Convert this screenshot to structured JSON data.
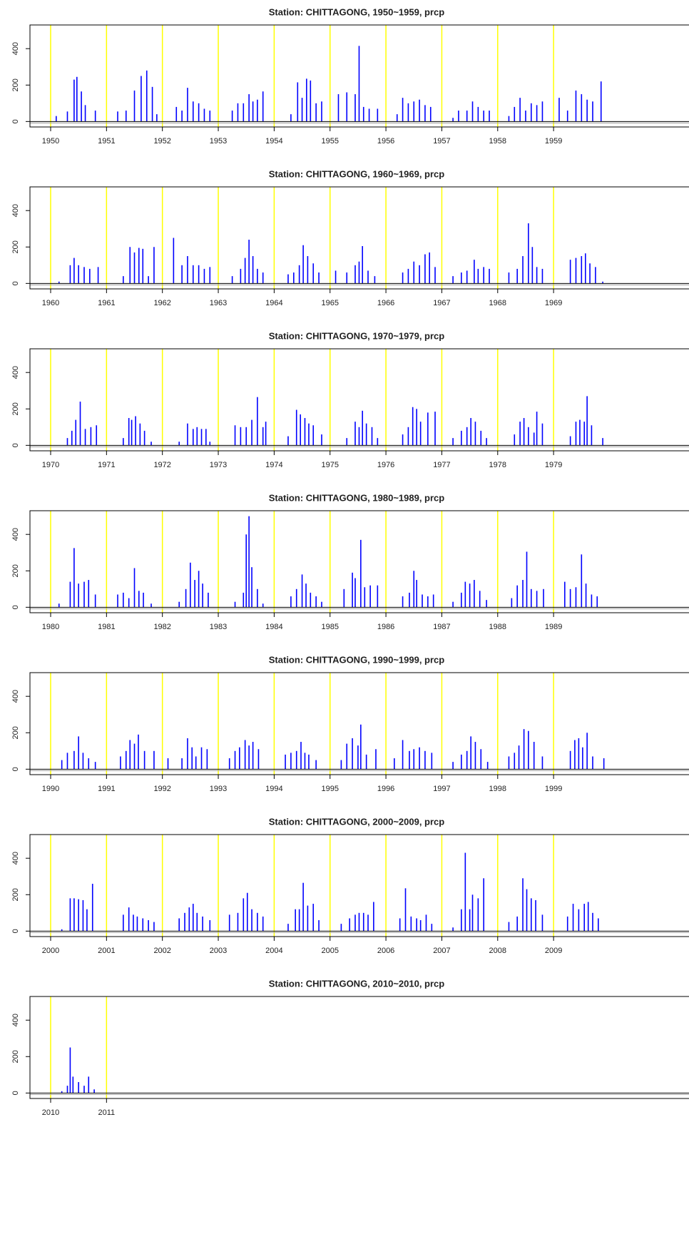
{
  "chart_data": [
    {
      "type": "bar",
      "title": "Station: CHITTAGONG, 1950~1959,  prcp",
      "color": "#0000ff",
      "year_line_color": "#ffff00",
      "xlim": [
        1949.63,
        1961.5
      ],
      "ylim": [
        -30,
        530
      ],
      "yticks": [
        0,
        200,
        400
      ],
      "xticks": [
        1950,
        1951,
        1952,
        1953,
        1954,
        1955,
        1956,
        1957,
        1958,
        1959
      ],
      "x": [
        1950.1,
        1950.3,
        1950.42,
        1950.47,
        1950.55,
        1950.62,
        1950.8,
        1951.2,
        1951.35,
        1951.5,
        1951.62,
        1951.72,
        1951.82,
        1951.9,
        1952.25,
        1952.35,
        1952.45,
        1952.55,
        1952.65,
        1952.75,
        1952.85,
        1953.25,
        1953.35,
        1953.45,
        1953.55,
        1953.62,
        1953.7,
        1953.8,
        1954.3,
        1954.42,
        1954.5,
        1954.58,
        1954.65,
        1954.75,
        1954.85,
        1955.15,
        1955.3,
        1955.45,
        1955.52,
        1955.6,
        1955.7,
        1955.85,
        1956.2,
        1956.3,
        1956.4,
        1956.5,
        1956.6,
        1956.7,
        1956.8,
        1957.2,
        1957.3,
        1957.45,
        1957.55,
        1957.65,
        1957.75,
        1957.85,
        1958.2,
        1958.3,
        1958.4,
        1958.5,
        1958.6,
        1958.7,
        1958.8,
        1959.1,
        1959.25,
        1959.4,
        1959.5,
        1959.6,
        1959.7,
        1959.85
      ],
      "values": [
        30,
        55,
        230,
        245,
        165,
        90,
        60,
        55,
        60,
        170,
        250,
        280,
        190,
        40,
        80,
        60,
        185,
        110,
        100,
        70,
        60,
        60,
        100,
        100,
        150,
        110,
        120,
        165,
        40,
        215,
        130,
        235,
        225,
        100,
        110,
        150,
        160,
        150,
        415,
        80,
        70,
        70,
        40,
        130,
        100,
        110,
        120,
        90,
        80,
        20,
        60,
        60,
        110,
        80,
        60,
        60,
        30,
        80,
        130,
        60,
        100,
        90,
        110,
        130,
        60,
        170,
        150,
        120,
        110,
        220
      ]
    },
    {
      "type": "bar",
      "title": "Station: CHITTAGONG, 1960~1969,  prcp",
      "color": "#0000ff",
      "year_line_color": "#ffff00",
      "xlim": [
        1959.63,
        1971.5
      ],
      "ylim": [
        -30,
        530
      ],
      "yticks": [
        0,
        200,
        400
      ],
      "xticks": [
        1960,
        1961,
        1962,
        1963,
        1964,
        1965,
        1966,
        1967,
        1968,
        1969
      ],
      "x": [
        1960.15,
        1960.35,
        1960.42,
        1960.5,
        1960.6,
        1960.7,
        1960.85,
        1961.3,
        1961.42,
        1961.5,
        1961.58,
        1961.65,
        1961.75,
        1961.85,
        1962.2,
        1962.35,
        1962.45,
        1962.55,
        1962.65,
        1962.75,
        1962.85,
        1963.25,
        1963.4,
        1963.48,
        1963.55,
        1963.62,
        1963.7,
        1963.8,
        1964.25,
        1964.35,
        1964.45,
        1964.52,
        1964.6,
        1964.7,
        1964.8,
        1965.1,
        1965.3,
        1965.45,
        1965.52,
        1965.58,
        1965.68,
        1965.8,
        1966.3,
        1966.4,
        1966.5,
        1966.6,
        1966.7,
        1966.78,
        1966.88,
        1967.2,
        1967.35,
        1967.45,
        1967.58,
        1967.65,
        1967.75,
        1967.85,
        1968.2,
        1968.35,
        1968.45,
        1968.55,
        1968.62,
        1968.7,
        1968.8,
        1969.3,
        1969.4,
        1969.5,
        1969.57,
        1969.65,
        1969.75,
        1969.88
      ],
      "values": [
        10,
        100,
        140,
        100,
        90,
        80,
        90,
        40,
        200,
        170,
        195,
        190,
        40,
        200,
        250,
        100,
        150,
        100,
        100,
        80,
        90,
        40,
        80,
        140,
        240,
        150,
        80,
        60,
        50,
        60,
        100,
        210,
        150,
        110,
        60,
        70,
        60,
        100,
        120,
        205,
        70,
        40,
        60,
        80,
        120,
        100,
        160,
        170,
        90,
        40,
        60,
        70,
        130,
        80,
        90,
        80,
        60,
        80,
        150,
        330,
        200,
        90,
        80,
        130,
        140,
        150,
        165,
        110,
        90,
        10
      ]
    },
    {
      "type": "bar",
      "title": "Station: CHITTAGONG, 1970~1979,  prcp",
      "color": "#0000ff",
      "year_line_color": "#ffff00",
      "xlim": [
        1969.63,
        1981.5
      ],
      "ylim": [
        -30,
        530
      ],
      "yticks": [
        0,
        200,
        400
      ],
      "xticks": [
        1970,
        1971,
        1972,
        1973,
        1974,
        1975,
        1976,
        1977,
        1978,
        1979
      ],
      "x": [
        1970.3,
        1970.38,
        1970.45,
        1970.53,
        1970.62,
        1970.72,
        1970.82,
        1971.3,
        1971.4,
        1971.45,
        1971.52,
        1971.6,
        1971.68,
        1971.8,
        1972.3,
        1972.45,
        1972.55,
        1972.62,
        1972.7,
        1972.78,
        1972.85,
        1973.3,
        1973.4,
        1973.5,
        1973.6,
        1973.7,
        1973.8,
        1973.85,
        1974.25,
        1974.4,
        1974.47,
        1974.55,
        1974.62,
        1974.7,
        1974.85,
        1975.3,
        1975.45,
        1975.52,
        1975.58,
        1975.65,
        1975.75,
        1975.85,
        1976.3,
        1976.4,
        1976.48,
        1976.55,
        1976.62,
        1976.75,
        1976.88,
        1977.2,
        1977.35,
        1977.45,
        1977.52,
        1977.6,
        1977.7,
        1977.8,
        1978.3,
        1978.4,
        1978.47,
        1978.55,
        1978.65,
        1978.7,
        1978.8,
        1979.3,
        1979.4,
        1979.47,
        1979.55,
        1979.6,
        1979.68,
        1979.88
      ],
      "values": [
        40,
        80,
        140,
        240,
        90,
        100,
        110,
        40,
        150,
        140,
        160,
        120,
        80,
        20,
        20,
        120,
        90,
        100,
        90,
        90,
        20,
        110,
        100,
        100,
        140,
        265,
        100,
        130,
        50,
        195,
        170,
        150,
        120,
        110,
        60,
        40,
        130,
        100,
        190,
        120,
        100,
        40,
        60,
        100,
        210,
        200,
        130,
        180,
        185,
        40,
        80,
        100,
        150,
        130,
        80,
        40,
        60,
        130,
        150,
        100,
        70,
        185,
        120,
        50,
        130,
        140,
        130,
        270,
        110,
        40
      ]
    },
    {
      "type": "bar",
      "title": "Station: CHITTAGONG, 1980~1989,  prcp",
      "color": "#0000ff",
      "year_line_color": "#ffff00",
      "xlim": [
        1979.63,
        1991.5
      ],
      "ylim": [
        -30,
        530
      ],
      "yticks": [
        0,
        200,
        400
      ],
      "xticks": [
        1980,
        1981,
        1982,
        1983,
        1984,
        1985,
        1986,
        1987,
        1988,
        1989
      ],
      "x": [
        1980.15,
        1980.35,
        1980.42,
        1980.5,
        1980.6,
        1980.68,
        1980.8,
        1981.2,
        1981.3,
        1981.4,
        1981.5,
        1981.58,
        1981.66,
        1981.8,
        1982.3,
        1982.42,
        1982.5,
        1982.58,
        1982.65,
        1982.72,
        1982.82,
        1983.3,
        1983.45,
        1983.5,
        1983.55,
        1983.6,
        1983.7,
        1983.8,
        1984.3,
        1984.4,
        1984.5,
        1984.57,
        1984.65,
        1984.75,
        1984.85,
        1985.25,
        1985.4,
        1985.45,
        1985.55,
        1985.62,
        1985.72,
        1985.85,
        1986.3,
        1986.42,
        1986.5,
        1986.55,
        1986.65,
        1986.75,
        1986.85,
        1987.2,
        1987.35,
        1987.42,
        1987.5,
        1987.58,
        1987.68,
        1987.8,
        1988.25,
        1988.35,
        1988.45,
        1988.52,
        1988.6,
        1988.7,
        1988.82,
        1989.2,
        1989.3,
        1989.4,
        1989.5,
        1989.58,
        1989.68,
        1989.78
      ],
      "values": [
        20,
        140,
        325,
        130,
        140,
        150,
        70,
        70,
        80,
        50,
        215,
        90,
        80,
        20,
        30,
        100,
        245,
        150,
        200,
        130,
        80,
        30,
        80,
        400,
        500,
        220,
        100,
        20,
        60,
        100,
        180,
        130,
        80,
        60,
        30,
        100,
        190,
        160,
        370,
        110,
        120,
        120,
        60,
        80,
        200,
        150,
        70,
        60,
        70,
        30,
        80,
        140,
        130,
        150,
        90,
        40,
        50,
        120,
        150,
        305,
        100,
        90,
        100,
        140,
        100,
        110,
        290,
        130,
        70,
        60
      ]
    },
    {
      "type": "bar",
      "title": "Station: CHITTAGONG, 1990~1999,  prcp",
      "color": "#0000ff",
      "year_line_color": "#ffff00",
      "xlim": [
        1989.63,
        2001.5
      ],
      "ylim": [
        -30,
        530
      ],
      "yticks": [
        0,
        200,
        400
      ],
      "xticks": [
        1990,
        1991,
        1992,
        1993,
        1994,
        1995,
        1996,
        1997,
        1998,
        1999
      ],
      "x": [
        1990.2,
        1990.3,
        1990.42,
        1990.5,
        1990.58,
        1990.68,
        1990.8,
        1991.25,
        1991.35,
        1991.42,
        1991.5,
        1991.57,
        1991.68,
        1991.85,
        1992.1,
        1992.35,
        1992.45,
        1992.53,
        1992.6,
        1992.7,
        1992.8,
        1993.2,
        1993.3,
        1993.38,
        1993.48,
        1993.55,
        1993.62,
        1993.72,
        1994.2,
        1994.3,
        1994.4,
        1994.48,
        1994.55,
        1994.62,
        1994.75,
        1995.2,
        1995.3,
        1995.4,
        1995.5,
        1995.55,
        1995.65,
        1995.82,
        1996.15,
        1996.3,
        1996.42,
        1996.5,
        1996.6,
        1996.7,
        1996.82,
        1997.2,
        1997.35,
        1997.45,
        1997.52,
        1997.6,
        1997.7,
        1997.82,
        1998.2,
        1998.3,
        1998.38,
        1998.47,
        1998.55,
        1998.65,
        1998.8,
        1999.3,
        1999.38,
        1999.45,
        1999.52,
        1999.6,
        1999.7,
        1999.9
      ],
      "values": [
        50,
        90,
        100,
        180,
        90,
        60,
        40,
        70,
        100,
        160,
        140,
        190,
        100,
        100,
        60,
        60,
        170,
        120,
        70,
        120,
        110,
        60,
        100,
        120,
        160,
        130,
        150,
        110,
        80,
        90,
        100,
        150,
        90,
        80,
        50,
        50,
        140,
        170,
        130,
        245,
        80,
        110,
        60,
        160,
        100,
        110,
        120,
        100,
        90,
        40,
        80,
        100,
        180,
        150,
        110,
        40,
        70,
        90,
        130,
        220,
        210,
        150,
        70,
        100,
        160,
        170,
        120,
        200,
        70,
        60
      ]
    },
    {
      "type": "bar",
      "title": "Station: CHITTAGONG, 2000~2009,  prcp",
      "color": "#0000ff",
      "year_line_color": "#ffff00",
      "xlim": [
        1999.63,
        2011.5
      ],
      "ylim": [
        -30,
        530
      ],
      "yticks": [
        0,
        200,
        400
      ],
      "xticks": [
        2000,
        2001,
        2002,
        2003,
        2004,
        2005,
        2006,
        2007,
        2008,
        2009
      ],
      "x": [
        2000.2,
        2000.35,
        2000.42,
        2000.5,
        2000.58,
        2000.65,
        2000.75,
        2001.3,
        2001.4,
        2001.48,
        2001.55,
        2001.65,
        2001.75,
        2001.85,
        2002.3,
        2002.4,
        2002.48,
        2002.55,
        2002.62,
        2002.72,
        2002.85,
        2003.2,
        2003.35,
        2003.45,
        2003.52,
        2003.6,
        2003.7,
        2003.8,
        2004.25,
        2004.38,
        2004.45,
        2004.52,
        2004.6,
        2004.7,
        2004.8,
        2005.2,
        2005.35,
        2005.45,
        2005.52,
        2005.6,
        2005.68,
        2005.78,
        2006.25,
        2006.35,
        2006.45,
        2006.55,
        2006.62,
        2006.72,
        2006.82,
        2007.2,
        2007.35,
        2007.42,
        2007.5,
        2007.55,
        2007.65,
        2007.75,
        2008.2,
        2008.35,
        2008.45,
        2008.52,
        2008.6,
        2008.68,
        2008.8,
        2009.25,
        2009.35,
        2009.45,
        2009.55,
        2009.62,
        2009.7,
        2009.8
      ],
      "values": [
        10,
        180,
        180,
        175,
        170,
        120,
        260,
        90,
        130,
        90,
        80,
        70,
        60,
        50,
        70,
        100,
        130,
        150,
        100,
        80,
        60,
        90,
        100,
        180,
        210,
        120,
        100,
        80,
        40,
        120,
        120,
        265,
        140,
        150,
        60,
        40,
        70,
        90,
        100,
        100,
        90,
        160,
        70,
        235,
        80,
        70,
        60,
        90,
        40,
        20,
        120,
        430,
        120,
        200,
        180,
        290,
        50,
        80,
        290,
        230,
        180,
        170,
        90,
        80,
        150,
        120,
        150,
        160,
        100,
        70
      ]
    },
    {
      "type": "bar",
      "title": "Station: CHITTAGONG, 2010~2010,  prcp",
      "color": "#0000ff",
      "year_line_color": "#ffff00",
      "xlim": [
        2009.63,
        2021.5
      ],
      "ylim": [
        -30,
        530
      ],
      "yticks": [
        0,
        200,
        400
      ],
      "xticks": [
        2010,
        2011
      ],
      "x": [
        2010.2,
        2010.3,
        2010.35,
        2010.4,
        2010.5,
        2010.6,
        2010.68,
        2010.78
      ],
      "values": [
        10,
        40,
        250,
        90,
        60,
        40,
        90,
        20
      ]
    }
  ]
}
